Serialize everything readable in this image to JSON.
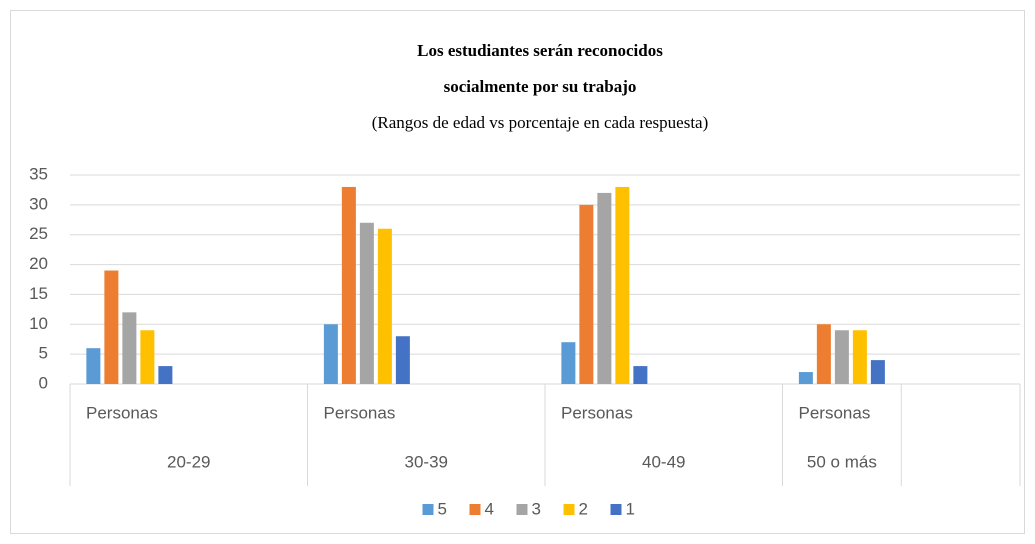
{
  "chart_data": {
    "type": "bar",
    "title": [
      "Los estudiantes serán reconocidos",
      "socialmente por su trabajo"
    ],
    "subtitle": "(Rangos de edad vs porcentaje en cada respuesta)",
    "categories": [
      "Personas",
      null,
      "Personas",
      null,
      "Personas",
      null,
      "Personas",
      null
    ],
    "groups": [
      "20-29",
      "30-39",
      "40-49",
      "50 o más"
    ],
    "series": [
      {
        "name": "5",
        "color": "#5b9bd5",
        "values": [
          6,
          null,
          10,
          null,
          7,
          null,
          2,
          null
        ]
      },
      {
        "name": "4",
        "color": "#ed7d31",
        "values": [
          19,
          null,
          33,
          null,
          30,
          null,
          10,
          null
        ]
      },
      {
        "name": "3",
        "color": "#a5a5a5",
        "values": [
          12,
          null,
          27,
          null,
          32,
          null,
          9,
          null
        ]
      },
      {
        "name": "2",
        "color": "#ffc000",
        "values": [
          9,
          null,
          26,
          null,
          33,
          null,
          9,
          null
        ]
      },
      {
        "name": "1",
        "color": "#4472c4",
        "values": [
          3,
          null,
          8,
          null,
          3,
          null,
          4,
          null
        ]
      }
    ],
    "ylim": [
      0,
      35
    ],
    "yticks": [
      0,
      5,
      10,
      15,
      20,
      25,
      30,
      35
    ],
    "grid": true,
    "legend": "bottom"
  }
}
